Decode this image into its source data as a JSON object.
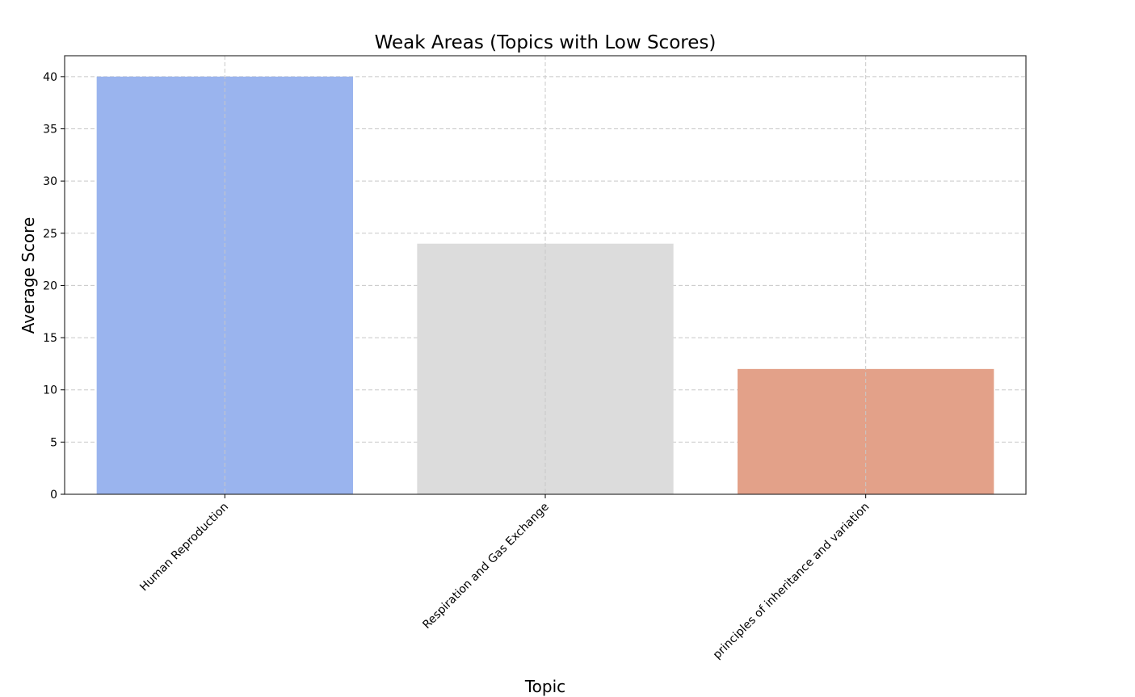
{
  "chart_data": {
    "type": "bar",
    "title": "Weak Areas (Topics with Low Scores)",
    "xlabel": "Topic",
    "ylabel": "Average Score",
    "categories": [
      "Human Reproduction",
      "Respiration and Gas Exchange",
      "principles of inheritance and variation"
    ],
    "values": [
      40,
      24,
      12
    ],
    "colors": [
      "#9ab4ee",
      "#dcdcdc",
      "#e3a189"
    ],
    "ylim": [
      0,
      42
    ],
    "yticks": [
      "0",
      "5",
      "10",
      "15",
      "20",
      "25",
      "30",
      "35",
      "40"
    ],
    "grid": true,
    "legend": "none"
  }
}
